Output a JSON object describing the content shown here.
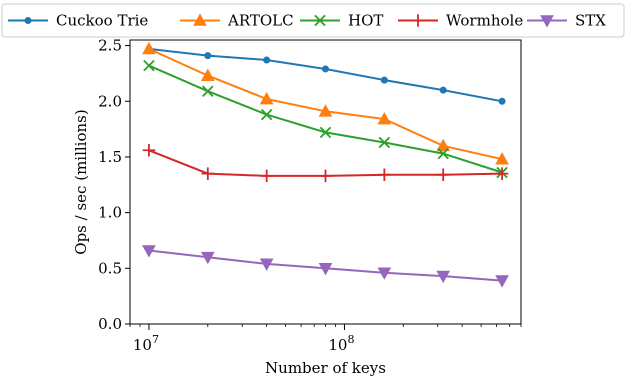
{
  "chart_data": {
    "type": "line",
    "title": "",
    "xlabel": "Number of keys",
    "ylabel": "Ops / sec (millions)",
    "x_scale": "log",
    "xlim": [
      8000000,
      800000000
    ],
    "ylim": [
      0,
      2.55
    ],
    "x_ticks": [
      {
        "value": 10000000,
        "base": "10",
        "exp": "7"
      },
      {
        "value": 100000000,
        "base": "10",
        "exp": "8"
      }
    ],
    "y_ticks": [
      "0.0",
      "0.5",
      "1.0",
      "1.5",
      "2.0",
      "2.5"
    ],
    "x": [
      10000000,
      20000000,
      40000000,
      80000000,
      160000000,
      320000000,
      640000000
    ],
    "legend": {
      "location": "top, spanning above the plot",
      "columns": 5
    },
    "series": [
      {
        "name": "Cuckoo Trie",
        "color": "#1f77b4",
        "marker": "circle",
        "values": [
          2.47,
          2.41,
          2.37,
          2.29,
          2.19,
          2.1,
          2.0
        ]
      },
      {
        "name": "ARTOLC",
        "color": "#ff7f0e",
        "marker": "triangle-up",
        "values": [
          2.47,
          2.23,
          2.02,
          1.91,
          1.84,
          1.6,
          1.48
        ]
      },
      {
        "name": "HOT",
        "color": "#2ca02c",
        "marker": "x",
        "values": [
          2.32,
          2.09,
          1.88,
          1.72,
          1.63,
          1.53,
          1.36
        ]
      },
      {
        "name": "Wormhole",
        "color": "#d62728",
        "marker": "plus",
        "values": [
          1.56,
          1.35,
          1.33,
          1.33,
          1.34,
          1.34,
          1.35
        ]
      },
      {
        "name": "STX",
        "color": "#9467bd",
        "marker": "triangle-down",
        "values": [
          0.66,
          0.6,
          0.54,
          0.5,
          0.46,
          0.43,
          0.39
        ]
      }
    ]
  }
}
